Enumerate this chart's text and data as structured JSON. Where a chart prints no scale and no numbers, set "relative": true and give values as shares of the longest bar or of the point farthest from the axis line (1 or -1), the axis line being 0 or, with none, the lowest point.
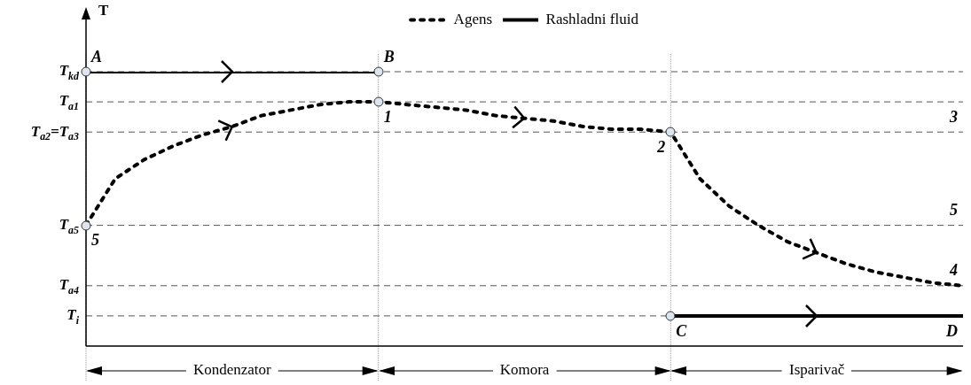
{
  "chart_data": {
    "type": "line",
    "ylabel": "T",
    "relative": true,
    "legend": "top",
    "categories": [
      null,
      null,
      null,
      null,
      null,
      null,
      null,
      null,
      null,
      null,
      null,
      null,
      null,
      null,
      null,
      null,
      null,
      null,
      null,
      null,
      null,
      null,
      null,
      null,
      null,
      null,
      null,
      null,
      null,
      null,
      null
    ],
    "series": [
      {
        "name": "Agens",
        "color": "#000000",
        "line_style": "dotted",
        "values": [
          0.44,
          0.61,
          0.68,
          0.73,
          0.77,
          0.8,
          0.84,
          0.86,
          0.88,
          0.89,
          0.89,
          0.88,
          0.87,
          0.86,
          0.84,
          0.83,
          0.82,
          0.8,
          0.79,
          0.79,
          0.78,
          0.61,
          0.51,
          0.44,
          0.38,
          0.34,
          0.3,
          0.27,
          0.25,
          0.23,
          0.22
        ]
      },
      {
        "name": "Rashladni fluid",
        "color": "#000000",
        "line_style": "solid",
        "values": [
          1,
          1,
          1,
          1,
          1,
          1,
          1,
          1,
          1,
          1,
          1,
          null,
          null,
          null,
          null,
          null,
          null,
          null,
          null,
          null,
          0.11,
          0.11,
          0.11,
          0.11,
          0.11,
          0.11,
          0.11,
          0.11,
          0.11,
          0.11,
          0.11
        ]
      }
    ],
    "ref_lines": [
      {
        "axis": "y",
        "value": 1,
        "label": "T$_{kd}$",
        "color": "#555555",
        "line_style": "dashed"
      },
      {
        "axis": "y",
        "value": 0.89,
        "label": "T$_{a1}$",
        "color": "#555555",
        "line_style": "dashed"
      },
      {
        "axis": "y",
        "value": 0.78,
        "label": "T$_{a2}$=T$_{a3}$",
        "color": "#555555",
        "line_style": "dashed"
      },
      {
        "axis": "y",
        "value": 0.44,
        "label": "T$_{a5}$",
        "color": "#555555",
        "line_style": "dashed"
      },
      {
        "axis": "y",
        "value": 0.22,
        "label": "T$_{a4}$",
        "color": "#555555",
        "line_style": "dashed"
      },
      {
        "axis": "y",
        "value": 0.11,
        "label": "T$_{i}$",
        "color": "#555555",
        "line_style": "dashed"
      }
    ],
    "annotations": [
      "Kondenzator",
      "Komora",
      "Isparivač",
      {
        "text": "A",
        "y": 1
      },
      {
        "text": "B",
        "y": 1
      },
      {
        "text": "1",
        "y": 0.89
      },
      {
        "text": "5",
        "y": 0.44
      },
      {
        "text": "2",
        "y": 0.78
      },
      {
        "text": "C",
        "y": 0.11
      },
      {
        "text": "D",
        "y": 0.11
      },
      {
        "text": "3",
        "y": 0.78
      },
      {
        "text": "5",
        "y": 0.44
      },
      {
        "text": "4",
        "y": 0.22
      }
    ]
  }
}
